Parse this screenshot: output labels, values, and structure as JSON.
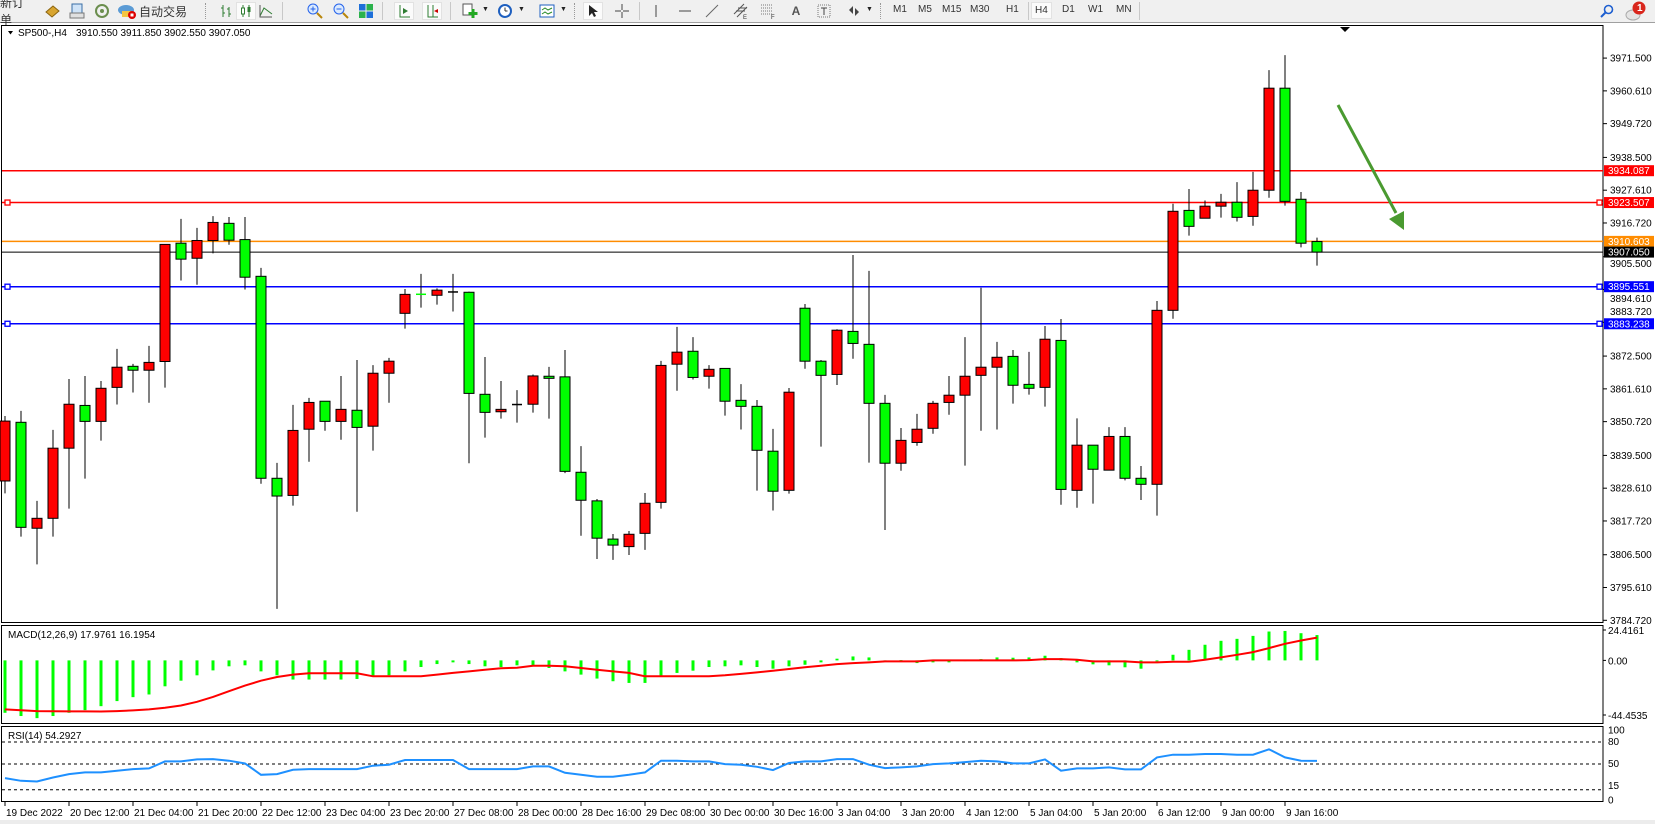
{
  "toolbar": {
    "new_order": "新订单",
    "auto_trading": "自动交易",
    "timeframes": [
      "M1",
      "M5",
      "M15",
      "M30",
      "H1",
      "H4",
      "D1",
      "W1",
      "MN"
    ],
    "active_timeframe": "H4",
    "notification_count": "1"
  },
  "chart": {
    "symbol_header": "SP500-,H4",
    "ohlc_header": "3910.550 3911.850 3902.550 3907.050",
    "price_axis_labels": [
      "3971.500",
      "3960.610",
      "3949.720",
      "3938.500",
      "3927.610",
      "3916.720",
      "3905.500",
      "3894.610",
      "3883.720",
      "3872.500",
      "3861.610",
      "3850.720",
      "3839.500",
      "3828.610",
      "3817.720",
      "3806.500",
      "3795.610",
      "3784.720"
    ],
    "time_labels": [
      {
        "index": 0,
        "label": "19 Dec 2022"
      },
      {
        "index": 4,
        "label": "20 Dec 12:00"
      },
      {
        "index": 8,
        "label": "21 Dec 04:00"
      },
      {
        "index": 12,
        "label": "21 Dec 20:00"
      },
      {
        "index": 16,
        "label": "22 Dec 12:00"
      },
      {
        "index": 20,
        "label": "23 Dec 04:00"
      },
      {
        "index": 24,
        "label": "23 Dec 20:00"
      },
      {
        "index": 28,
        "label": "27 Dec 08:00"
      },
      {
        "index": 32,
        "label": "28 Dec 00:00"
      },
      {
        "index": 36,
        "label": "28 Dec 16:00"
      },
      {
        "index": 40,
        "label": "29 Dec 08:00"
      },
      {
        "index": 44,
        "label": "30 Dec 00:00"
      },
      {
        "index": 48,
        "label": "30 Dec 16:00"
      },
      {
        "index": 52,
        "label": "3 Jan 04:00"
      },
      {
        "index": 56,
        "label": "3 Jan 20:00"
      },
      {
        "index": 60,
        "label": "4 Jan 12:00"
      },
      {
        "index": 64,
        "label": "5 Jan 04:00"
      },
      {
        "index": 68,
        "label": "5 Jan 20:00"
      },
      {
        "index": 72,
        "label": "6 Jan 12:00"
      },
      {
        "index": 76,
        "label": "9 Jan 00:00"
      },
      {
        "index": 80,
        "label": "9 Jan 16:00"
      }
    ],
    "candles_ohlc": [
      [
        3831.0,
        3852.6,
        3826.9,
        3850.9
      ],
      [
        3850.5,
        3854.3,
        3812.5,
        3815.6
      ],
      [
        3815.3,
        3824.4,
        3803.3,
        3818.6
      ],
      [
        3818.6,
        3848.0,
        3812.5,
        3841.9
      ],
      [
        3841.9,
        3864.9,
        3821.8,
        3856.5
      ],
      [
        3856.1,
        3865.9,
        3831.8,
        3850.8
      ],
      [
        3850.8,
        3864.2,
        3844.4,
        3861.8
      ],
      [
        3862.1,
        3874.9,
        3856.4,
        3868.8
      ],
      [
        3869.1,
        3869.9,
        3860.4,
        3867.8
      ],
      [
        3867.8,
        3875.9,
        3857.0,
        3870.4
      ],
      [
        3870.7,
        3909.6,
        3862.0,
        3909.6
      ],
      [
        3910.0,
        3918.1,
        3897.6,
        3904.7
      ],
      [
        3905.0,
        3915.1,
        3896.2,
        3910.9
      ],
      [
        3910.9,
        3919.0,
        3906.6,
        3916.9
      ],
      [
        3916.6,
        3918.7,
        3909.5,
        3911.0
      ],
      [
        3911.2,
        3918.7,
        3894.6,
        3898.7
      ],
      [
        3899.0,
        3901.8,
        3830.1,
        3831.9
      ],
      [
        3831.9,
        3837.0,
        3788.5,
        3826.0
      ],
      [
        3826.2,
        3856.3,
        3822.8,
        3847.8
      ],
      [
        3848.2,
        3858.6,
        3837.4,
        3857.1
      ],
      [
        3857.5,
        3857.5,
        3847.7,
        3850.8
      ],
      [
        3850.8,
        3865.9,
        3844.7,
        3854.8
      ],
      [
        3854.5,
        3871.2,
        3820.8,
        3848.8
      ],
      [
        3849.2,
        3869.5,
        3841.1,
        3866.8
      ],
      [
        3866.8,
        3871.9,
        3857.0,
        3870.8
      ],
      [
        3886.7,
        3894.8,
        3881.6,
        3893.0
      ],
      [
        3893.05,
        3899.8,
        3888.6,
        3893.0
      ],
      [
        3892.7,
        3895.0,
        3889.6,
        3894.4
      ],
      [
        3893.8,
        3899.8,
        3887.3,
        3893.8
      ],
      [
        3893.7,
        3893.9,
        3836.9,
        3860.1
      ],
      [
        3859.8,
        3872.2,
        3845.4,
        3853.8
      ],
      [
        3854.0,
        3864.2,
        3851.7,
        3854.8
      ],
      [
        3856.4,
        3861.2,
        3850.4,
        3856.4
      ],
      [
        3856.5,
        3866.4,
        3853.7,
        3865.9
      ],
      [
        3865.8,
        3868.9,
        3851.7,
        3865.1
      ],
      [
        3865.6,
        3874.5,
        3833.6,
        3834.2
      ],
      [
        3833.9,
        3842.6,
        3812.8,
        3824.6
      ],
      [
        3824.4,
        3825.0,
        3805.1,
        3812.0
      ],
      [
        3811.7,
        3813.4,
        3804.8,
        3809.7
      ],
      [
        3809.2,
        3814.4,
        3806.4,
        3813.3
      ],
      [
        3813.6,
        3827.0,
        3808.1,
        3823.6
      ],
      [
        3823.9,
        3870.9,
        3821.8,
        3869.4
      ],
      [
        3869.8,
        3882.2,
        3861.0,
        3873.8
      ],
      [
        3874.1,
        3878.8,
        3864.7,
        3865.4
      ],
      [
        3865.8,
        3869.5,
        3861.7,
        3868.1
      ],
      [
        3868.4,
        3868.4,
        3852.7,
        3857.5
      ],
      [
        3857.8,
        3863.2,
        3848.1,
        3855.8
      ],
      [
        3855.8,
        3857.9,
        3827.8,
        3841.2
      ],
      [
        3840.9,
        3848.3,
        3821.2,
        3827.6
      ],
      [
        3827.9,
        3861.9,
        3826.8,
        3860.5
      ],
      [
        3888.4,
        3889.8,
        3868.3,
        3870.8
      ],
      [
        3870.8,
        3871.2,
        3842.4,
        3866.1
      ],
      [
        3866.4,
        3881.4,
        3862.9,
        3881.1
      ],
      [
        3880.7,
        3906.1,
        3871.6,
        3876.7
      ],
      [
        3876.4,
        3900.8,
        3837.1,
        3856.8
      ],
      [
        3856.8,
        3859.6,
        3814.7,
        3836.9
      ],
      [
        3836.9,
        3848.6,
        3834.4,
        3844.5
      ],
      [
        3843.8,
        3853.3,
        3842.7,
        3848.2
      ],
      [
        3848.5,
        3857.6,
        3846.7,
        3856.8
      ],
      [
        3857.1,
        3865.9,
        3853.0,
        3859.5
      ],
      [
        3859.5,
        3878.8,
        3836.1,
        3865.8
      ],
      [
        3866.1,
        3895.2,
        3847.7,
        3868.8
      ],
      [
        3868.8,
        3877.2,
        3848.1,
        3872.1
      ],
      [
        3872.4,
        3874.5,
        3856.7,
        3862.8
      ],
      [
        3863.1,
        3873.9,
        3859.7,
        3861.8
      ],
      [
        3862.1,
        3882.5,
        3855.7,
        3878.1
      ],
      [
        3877.7,
        3884.8,
        3823.1,
        3828.2
      ],
      [
        3827.9,
        3851.8,
        3822.1,
        3842.9
      ],
      [
        3842.9,
        3842.9,
        3823.5,
        3834.9
      ],
      [
        3834.6,
        3848.9,
        3834.6,
        3845.8
      ],
      [
        3845.8,
        3848.9,
        3831.2,
        3831.9
      ],
      [
        3831.9,
        3836.0,
        3824.7,
        3829.9
      ],
      [
        3829.9,
        3890.8,
        3819.5,
        3887.7
      ],
      [
        3887.7,
        3923.1,
        3884.9,
        3920.6
      ],
      [
        3920.9,
        3928.0,
        3912.5,
        3915.6
      ],
      [
        3918.3,
        3924.2,
        3918.3,
        3922.3
      ],
      [
        3922.3,
        3926.4,
        3918.5,
        3923.6
      ],
      [
        3923.6,
        3930.3,
        3917.2,
        3918.6
      ],
      [
        3918.9,
        3933.7,
        3915.8,
        3927.6
      ],
      [
        3927.6,
        3967.5,
        3925.1,
        3961.5
      ],
      [
        3961.5,
        3972.5,
        3922.5,
        3923.9
      ],
      [
        3924.6,
        3927.0,
        3908.6,
        3910.0
      ],
      [
        3910.55,
        3911.85,
        3902.55,
        3907.05
      ]
    ],
    "horizontal_lines": [
      {
        "price": 3934.087,
        "label": "3934.087",
        "color": "#ff0000",
        "anchors": false
      },
      {
        "price": 3923.507,
        "label": "3923.507",
        "color": "#ff0000",
        "anchors": true
      },
      {
        "price": 3910.603,
        "label": "3910.603",
        "color": "#ff8c00",
        "anchors": false
      },
      {
        "price": 3895.551,
        "label": "3895.551",
        "color": "#0000ff",
        "anchors": true
      },
      {
        "price": 3883.238,
        "label": "3883.238",
        "color": "#0000ff",
        "anchors": true
      }
    ],
    "bid_line": {
      "price": 3907.05,
      "label": "3907.050",
      "color": "#000000"
    },
    "arrow": {
      "color": "#4a9a30",
      "direction": "down-right"
    },
    "colors": {
      "bull": "#ff0000",
      "bear": "#00ff00",
      "doji": "#000000",
      "frame": "#000000"
    }
  },
  "macd": {
    "label": "MACD(12,26,9) 17.9761 16.1954",
    "axis_labels": [
      "24.4161",
      "0.00",
      "-44.4535"
    ],
    "range": [
      -44.4535,
      24.4161
    ],
    "histogram_color": "#00ff00",
    "signal_color": "#ff0000",
    "histogram": [
      -37.2,
      -39.5,
      -41,
      -39.5,
      -37.2,
      -35.3,
      -32.5,
      -28.9,
      -26.1,
      -24.2,
      -18.4,
      -14.4,
      -10.6,
      -7.1,
      -4.2,
      -3.5,
      -7.8,
      -10.6,
      -13.6,
      -13.6,
      -13.6,
      -13.6,
      -13.2,
      -11.3,
      -10.6,
      -7.8,
      -4.7,
      -2.6,
      -1.4,
      -2.6,
      -4.2,
      -4.7,
      -3.5,
      -4.2,
      -5.4,
      -7.8,
      -10.1,
      -12.9,
      -14.8,
      -16,
      -16,
      -11.8,
      -8.9,
      -7.3,
      -4.7,
      -4.2,
      -3.5,
      -4.7,
      -5.9,
      -4.2,
      -3.1,
      -1.4,
      1.2,
      2.8,
      2.1,
      -0.7,
      0.2,
      -1.9,
      -1.4,
      -1.4,
      0.2,
      0.9,
      2.1,
      1.9,
      2.1,
      3.3,
      1.6,
      -1.4,
      -2.8,
      -3.5,
      -4.9,
      -5.9,
      -0.5,
      4.0,
      7.5,
      11.1,
      13.9,
      15.3,
      17.4,
      20.5,
      20.9,
      19.3,
      17.98
    ],
    "signal": [
      -34.8,
      -35.4,
      -36,
      -36.1,
      -36.2,
      -36.2,
      -36.3,
      -36,
      -35.5,
      -34.8,
      -33.6,
      -32,
      -29.4,
      -25.9,
      -21.9,
      -17.9,
      -14.4,
      -11.8,
      -10.1,
      -9.2,
      -9.2,
      -9.2,
      -9.2,
      -11.3,
      -11.3,
      -11.3,
      -11.3,
      -10.1,
      -8.9,
      -7.8,
      -6.6,
      -5.6,
      -5.2,
      -3.8,
      -3.8,
      -4.2,
      -5.4,
      -6.6,
      -7.8,
      -8.9,
      -11.3,
      -11.3,
      -11.3,
      -11.3,
      -11.3,
      -10.6,
      -9.6,
      -8.5,
      -7.3,
      -6.1,
      -4.9,
      -3.8,
      -2.6,
      -1.9,
      -1.4,
      -0.7,
      -0.7,
      -0.7,
      0,
      0,
      0,
      0,
      0,
      0,
      0.2,
      0.9,
      0.9,
      0.5,
      -0.7,
      -0.7,
      -0.7,
      -1.4,
      -1.4,
      -0.9,
      -0.9,
      0.5,
      2.1,
      4.0,
      5.9,
      8.7,
      11.8,
      14.1,
      16.2
    ]
  },
  "rsi": {
    "label": "RSI(14) 54.2927",
    "axis_labels": [
      "100",
      "80",
      "50",
      "15",
      "0"
    ],
    "levels": [
      80,
      50,
      15
    ],
    "line_color": "#1e90ff",
    "values": [
      30.8,
      27.1,
      26.2,
      31.7,
      36.3,
      38.6,
      38.6,
      40.9,
      43.1,
      44.1,
      53.6,
      53.6,
      56.4,
      56.8,
      54.6,
      50.9,
      35.4,
      36.3,
      42.2,
      43.1,
      43.1,
      43.1,
      43.1,
      47.7,
      49.1,
      55.5,
      55.5,
      55.5,
      55.5,
      43.1,
      43.1,
      43.1,
      43.1,
      46.8,
      46.8,
      38.1,
      35.4,
      32.6,
      32.6,
      35.4,
      38.6,
      54.6,
      54.6,
      53.6,
      53.6,
      50,
      49.1,
      46.3,
      41.8,
      51.4,
      53.6,
      53.6,
      56.8,
      56.8,
      49.1,
      44.5,
      45.4,
      46.8,
      50,
      50.9,
      52.7,
      54.6,
      53.6,
      50.9,
      50.9,
      56.4,
      40.9,
      44.1,
      44.1,
      45.4,
      42.7,
      42.7,
      59.1,
      62.8,
      62.8,
      63.7,
      63.7,
      62.8,
      62.8,
      70.1,
      59.1,
      54.6,
      54.3
    ]
  }
}
